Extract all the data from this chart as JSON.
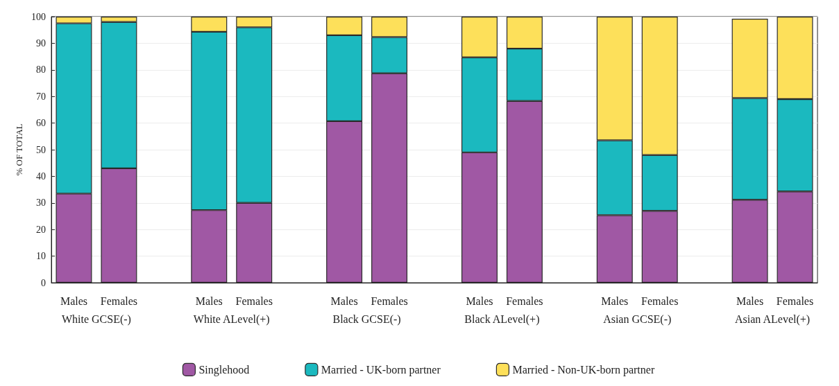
{
  "chart_data": {
    "type": "bar",
    "stacked": true,
    "categories": [
      "Males",
      "Females",
      null,
      "Males",
      "Females",
      null,
      "Males",
      "Females",
      null,
      "Males",
      "Females",
      null,
      "Males",
      "Females",
      null,
      "Males",
      "Females"
    ],
    "annotations": [
      "White GCSE(-)",
      "White ALevel(+)",
      "Black GCSE(-)",
      "Black ALevel(+)",
      "Asian GCSE(-)",
      "Asian ALevel(+)"
    ],
    "ylabel": "% OF TOTAL",
    "series": [
      {
        "name": "Singlehood",
        "color": "#a058a4",
        "values": [
          33.5,
          43,
          null,
          27.3,
          30,
          null,
          60.7,
          78.7,
          null,
          49,
          68.3,
          null,
          25.4,
          27,
          null,
          31.2,
          34.3
        ]
      },
      {
        "name": "Married - UK-born partner",
        "color": "#1bb9bf",
        "values": [
          64,
          55,
          null,
          67,
          66,
          null,
          32.3,
          13.6,
          null,
          35.7,
          19.7,
          null,
          28.1,
          21,
          null,
          38.2,
          34.7
        ]
      },
      {
        "name": "Married - Non-UK-born partner",
        "color": "#fde05a",
        "values": [
          2.5,
          2,
          null,
          5.7,
          4,
          null,
          7,
          7.7,
          null,
          15.3,
          12,
          null,
          46.5,
          52,
          null,
          29.8,
          31
        ]
      }
    ],
    "ylim": [
      0,
      100
    ],
    "yticks": [
      0,
      10,
      20,
      30,
      40,
      50,
      60,
      70,
      80,
      90,
      100
    ],
    "grid": "y",
    "legend": "bottom"
  }
}
